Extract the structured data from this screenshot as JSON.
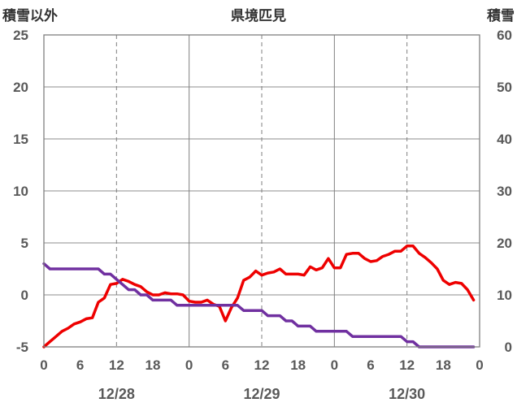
{
  "chart_data": {
    "type": "line",
    "title": "県境匹見",
    "ylabel_left": "積雪以外",
    "ylabel_right": "積雪",
    "y_left_ticks": [
      "25",
      "20",
      "15",
      "10",
      "5",
      "0",
      "-5"
    ],
    "y_right_ticks": [
      "60",
      "50",
      "40",
      "30",
      "20",
      "10",
      "0"
    ],
    "ylim_left": [
      -5,
      25
    ],
    "ylim_right": [
      0,
      60
    ],
    "x_tick_labels": [
      "0",
      "6",
      "12",
      "18",
      "0",
      "6",
      "12",
      "18",
      "0",
      "6",
      "12",
      "18",
      "0"
    ],
    "date_labels": [
      "12/28",
      "12/29",
      "12/30"
    ],
    "xlim_hours": [
      0,
      72
    ],
    "grid": true,
    "legend": "none",
    "colors": {
      "red_series": "#ee0000",
      "purple_series": "#7030a0"
    },
    "series": [
      {
        "axis": "left",
        "color": "#ee0000",
        "x": [
          0,
          1,
          2,
          3,
          4,
          5,
          6,
          7,
          8,
          9,
          10,
          11,
          12,
          13,
          14,
          15,
          16,
          17,
          18,
          19,
          20,
          21,
          22,
          23,
          24,
          25,
          26,
          27,
          28,
          29,
          30,
          31,
          32,
          33,
          34,
          35,
          36,
          37,
          38,
          39,
          40,
          41,
          42,
          43,
          44,
          45,
          46,
          47,
          48,
          49,
          50,
          51,
          52,
          53,
          54,
          55,
          56,
          57,
          58,
          59,
          60,
          61,
          62,
          63,
          64,
          65,
          66,
          67,
          68,
          69,
          70,
          71
        ],
        "values": [
          -5,
          -4.5,
          -4,
          -3.5,
          -3.2,
          -2.8,
          -2.6,
          -2.3,
          -2.2,
          -0.7,
          -0.3,
          1,
          1.1,
          1.5,
          1.3,
          1,
          0.8,
          0.3,
          0,
          0,
          0.2,
          0.1,
          0.1,
          0,
          -0.6,
          -0.7,
          -0.7,
          -0.5,
          -0.9,
          -1.1,
          -2.5,
          -1.2,
          -0.3,
          1.4,
          1.7,
          2.3,
          1.9,
          2.1,
          2.2,
          2.5,
          2,
          2,
          2,
          1.9,
          2.7,
          2.4,
          2.6,
          3.5,
          2.6,
          2.6,
          3.9,
          4,
          4,
          3.5,
          3.2,
          3.3,
          3.7,
          3.9,
          4.2,
          4.2,
          4.7,
          4.7,
          4,
          3.6,
          3.1,
          2.5,
          1.4,
          1,
          1.2,
          1.1,
          0.5,
          -0.5
        ]
      },
      {
        "axis": "right",
        "color": "#7030a0",
        "x": [
          0,
          0.5,
          1,
          2,
          3,
          4,
          5,
          6,
          7,
          8,
          9,
          10,
          11,
          12,
          13,
          14,
          15,
          16,
          17,
          18,
          19,
          20,
          21,
          22,
          23,
          24,
          25,
          26,
          27,
          28,
          29,
          30,
          31,
          32,
          33,
          34,
          35,
          36,
          37,
          38,
          39,
          40,
          41,
          42,
          43,
          44,
          45,
          46,
          47,
          48,
          49,
          50,
          51,
          52,
          53,
          54,
          55,
          56,
          57,
          58,
          59,
          60,
          61,
          62,
          63,
          64,
          65,
          66,
          67,
          68,
          69,
          70,
          71
        ],
        "values": [
          16,
          15.5,
          15,
          15,
          15,
          15,
          15,
          15,
          15,
          15,
          15,
          14,
          14,
          13,
          12,
          11,
          11,
          10,
          10,
          9,
          9,
          9,
          9,
          8,
          8,
          8,
          8,
          8,
          8,
          8,
          8,
          8,
          8,
          8,
          7,
          7,
          7,
          7,
          6,
          6,
          6,
          5,
          5,
          4,
          4,
          4,
          3,
          3,
          3,
          3,
          3,
          3,
          2,
          2,
          2,
          2,
          2,
          2,
          2,
          2,
          2,
          1,
          1,
          0,
          0,
          0,
          0,
          0,
          0,
          0,
          0,
          0,
          0
        ]
      }
    ]
  }
}
